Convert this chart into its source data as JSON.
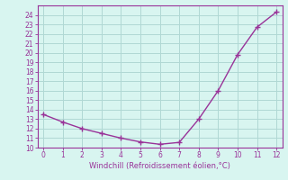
{
  "x": [
    0,
    1,
    2,
    3,
    4,
    5,
    6,
    7,
    8,
    9,
    10,
    11,
    12
  ],
  "y": [
    13.5,
    12.7,
    12.0,
    11.5,
    11.0,
    10.6,
    10.35,
    10.55,
    13.0,
    16.0,
    19.8,
    22.7,
    24.3
  ],
  "line_color": "#993399",
  "marker": "+",
  "marker_size": 4,
  "marker_color": "#993399",
  "background_color": "#d8f5f0",
  "grid_color": "#b0d8d4",
  "xlabel": "Windchill (Refroidissement éolien,°C)",
  "xlabel_color": "#993399",
  "tick_color": "#993399",
  "spine_color": "#993399",
  "xlim": [
    -0.3,
    12.3
  ],
  "ylim": [
    10,
    25
  ],
  "xticks": [
    0,
    1,
    2,
    3,
    4,
    5,
    6,
    7,
    8,
    9,
    10,
    11,
    12
  ],
  "yticks": [
    10,
    11,
    12,
    13,
    14,
    15,
    16,
    17,
    18,
    19,
    20,
    21,
    22,
    23,
    24
  ],
  "line_width": 1.0,
  "tick_labelsize": 5.5,
  "xlabel_fontsize": 6.0
}
